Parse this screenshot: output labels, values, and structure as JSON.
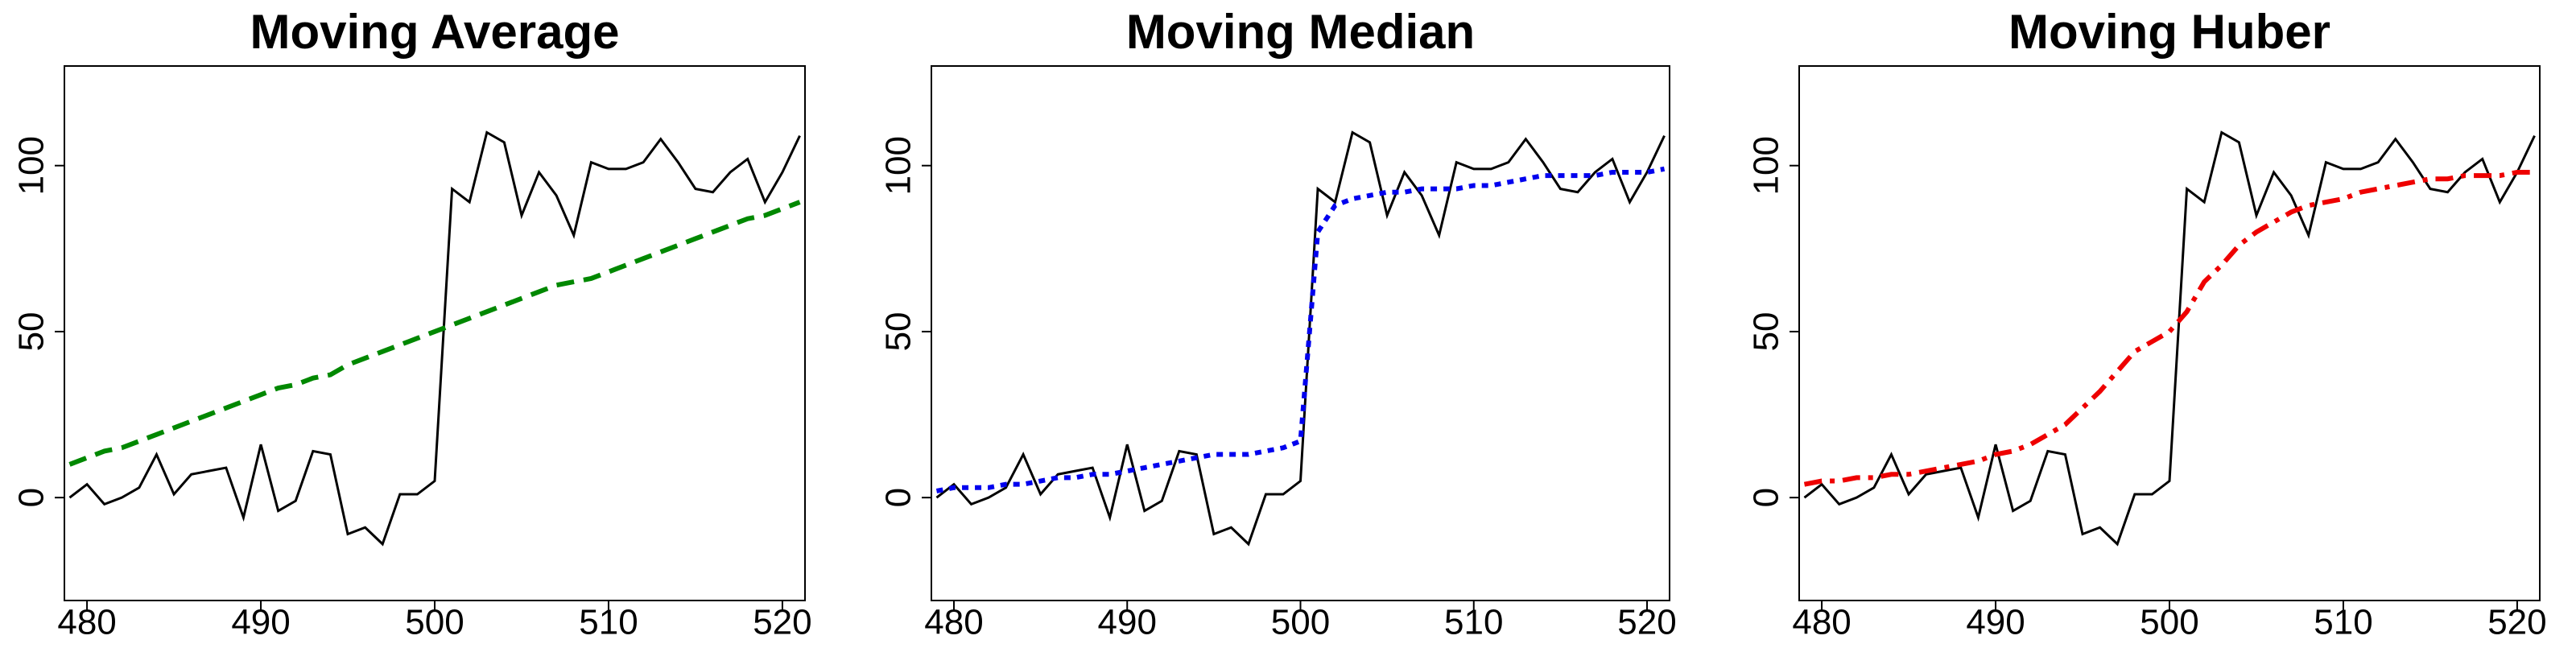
{
  "chart_data": [
    {
      "type": "line",
      "title": "Moving Average",
      "x": [
        479,
        480,
        481,
        482,
        483,
        484,
        485,
        486,
        487,
        488,
        489,
        490,
        491,
        492,
        493,
        494,
        495,
        496,
        497,
        498,
        499,
        500,
        501,
        502,
        503,
        504,
        505,
        506,
        507,
        508,
        509,
        510,
        511,
        512,
        513,
        514,
        515,
        516,
        517,
        518,
        519,
        520,
        521
      ],
      "series": [
        {
          "color": "#000000",
          "linestyle": "solid",
          "values": [
            0,
            4,
            -2,
            0,
            3,
            13,
            1,
            7,
            8,
            9,
            -6,
            16,
            -4,
            -1,
            14,
            13,
            -11,
            -9,
            -14,
            1,
            1,
            5,
            93,
            89,
            110,
            107,
            85,
            98,
            91,
            79,
            101,
            99,
            99,
            101,
            108,
            101,
            93,
            92,
            98,
            102,
            89,
            98,
            109
          ]
        },
        {
          "color": "#008800",
          "linestyle": "dashed",
          "values": [
            10,
            12,
            14,
            15,
            17,
            19,
            21,
            23,
            25,
            27,
            29,
            31,
            33,
            34,
            36,
            37,
            40,
            42,
            44,
            46,
            48,
            50,
            52,
            54,
            56,
            58,
            60,
            62,
            64,
            65,
            66,
            68,
            70,
            72,
            74,
            76,
            78,
            80,
            82,
            84,
            85,
            87,
            89
          ]
        }
      ],
      "xlim": [
        478.7,
        521.3
      ],
      "ylim": [
        -31,
        130
      ],
      "xticks": [
        480,
        490,
        500,
        510,
        520
      ],
      "yticks": [
        0,
        50,
        100
      ]
    },
    {
      "type": "line",
      "title": "Moving Median",
      "x": [
        479,
        480,
        481,
        482,
        483,
        484,
        485,
        486,
        487,
        488,
        489,
        490,
        491,
        492,
        493,
        494,
        495,
        496,
        497,
        498,
        499,
        500,
        501,
        502,
        503,
        504,
        505,
        506,
        507,
        508,
        509,
        510,
        511,
        512,
        513,
        514,
        515,
        516,
        517,
        518,
        519,
        520,
        521
      ],
      "series": [
        {
          "color": "#000000",
          "linestyle": "solid",
          "values": [
            0,
            4,
            -2,
            0,
            3,
            13,
            1,
            7,
            8,
            9,
            -6,
            16,
            -4,
            -1,
            14,
            13,
            -11,
            -9,
            -14,
            1,
            1,
            5,
            93,
            89,
            110,
            107,
            85,
            98,
            91,
            79,
            101,
            99,
            99,
            101,
            108,
            101,
            93,
            92,
            98,
            102,
            89,
            98,
            109
          ]
        },
        {
          "color": "#0000ee",
          "linestyle": "dotted",
          "values": [
            2,
            3,
            3,
            3,
            4,
            4,
            5,
            6,
            6,
            7,
            7,
            8,
            9,
            10,
            11,
            12,
            13,
            13,
            13,
            14,
            15,
            17,
            80,
            88,
            90,
            91,
            92,
            92,
            93,
            93,
            93,
            94,
            94,
            95,
            96,
            97,
            97,
            97,
            97,
            98,
            98,
            98,
            99
          ]
        }
      ],
      "xlim": [
        478.7,
        521.3
      ],
      "ylim": [
        -31,
        130
      ],
      "xticks": [
        480,
        490,
        500,
        510,
        520
      ],
      "yticks": [
        0,
        50,
        100
      ]
    },
    {
      "type": "line",
      "title": "Moving Huber",
      "x": [
        479,
        480,
        481,
        482,
        483,
        484,
        485,
        486,
        487,
        488,
        489,
        490,
        491,
        492,
        493,
        494,
        495,
        496,
        497,
        498,
        499,
        500,
        501,
        502,
        503,
        504,
        505,
        506,
        507,
        508,
        509,
        510,
        511,
        512,
        513,
        514,
        515,
        516,
        517,
        518,
        519,
        520,
        521
      ],
      "series": [
        {
          "color": "#000000",
          "linestyle": "solid",
          "values": [
            0,
            4,
            -2,
            0,
            3,
            13,
            1,
            7,
            8,
            9,
            -6,
            16,
            -4,
            -1,
            14,
            13,
            -11,
            -9,
            -14,
            1,
            1,
            5,
            93,
            89,
            110,
            107,
            85,
            98,
            91,
            79,
            101,
            99,
            99,
            101,
            108,
            101,
            93,
            92,
            98,
            102,
            89,
            98,
            109
          ]
        },
        {
          "color": "#ee0000",
          "linestyle": "dashdot",
          "values": [
            4,
            5,
            5,
            6,
            6,
            7,
            7,
            8,
            9,
            10,
            11,
            13,
            14,
            16,
            19,
            22,
            27,
            32,
            38,
            44,
            47,
            50,
            56,
            65,
            70,
            76,
            80,
            83,
            86,
            88,
            89,
            90,
            92,
            93,
            94,
            95,
            96,
            96,
            97,
            97,
            97,
            98,
            98
          ]
        }
      ],
      "xlim": [
        478.7,
        521.3
      ],
      "ylim": [
        -31,
        130
      ],
      "xticks": [
        480,
        490,
        500,
        510,
        520
      ],
      "yticks": [
        0,
        50,
        100
      ]
    }
  ]
}
